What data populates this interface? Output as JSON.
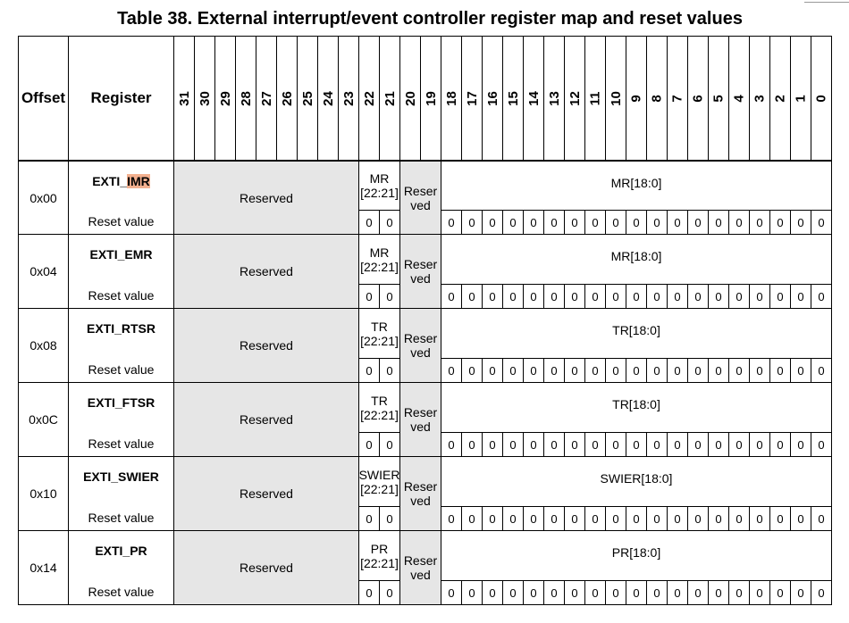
{
  "title": "Table 38. External interrupt/event controller register map and reset values",
  "headers": {
    "offset": "Offset",
    "register": "Register"
  },
  "bits": [
    "31",
    "30",
    "29",
    "28",
    "27",
    "26",
    "25",
    "24",
    "23",
    "22",
    "21",
    "20",
    "19",
    "18",
    "17",
    "16",
    "15",
    "14",
    "13",
    "12",
    "11",
    "10",
    "9",
    "8",
    "7",
    "6",
    "5",
    "4",
    "3",
    "2",
    "1",
    "0"
  ],
  "reset_label": "Reset value",
  "reserved_label": "Reserved",
  "reserved_split": [
    "Reser",
    "ved"
  ],
  "reset_bit": "0",
  "rows": [
    {
      "offset": "0x00",
      "name_prefix": "EXTI_",
      "name_suffix": "IMR",
      "field_hi": [
        "MR",
        "[22:21]"
      ],
      "field_lo": "MR[18:0]"
    },
    {
      "offset": "0x04",
      "name_prefix": "EXTI_",
      "name_suffix": "EMR",
      "field_hi": [
        "MR",
        "[22:21]"
      ],
      "field_lo": "MR[18:0]"
    },
    {
      "offset": "0x08",
      "name_prefix": "EXTI_",
      "name_suffix": "RTSR",
      "field_hi": [
        "TR",
        "[22:21]"
      ],
      "field_lo": "TR[18:0]"
    },
    {
      "offset": "0x0C",
      "name_prefix": "EXTI_",
      "name_suffix": "FTSR",
      "field_hi": [
        "TR",
        "[22:21]"
      ],
      "field_lo": "TR[18:0]"
    },
    {
      "offset": "0x10",
      "name_prefix": "EXTI_",
      "name_suffix": "SWIER",
      "field_hi": [
        "SWIER",
        "[22:21]"
      ],
      "field_lo": "SWIER[18:0]"
    },
    {
      "offset": "0x14",
      "name_prefix": "EXTI_",
      "name_suffix": "PR",
      "field_hi": [
        "PR",
        "[22:21]"
      ],
      "field_lo": "PR[18:0]"
    }
  ],
  "highlight": {
    "row": 0,
    "color": "#f3b08f"
  }
}
